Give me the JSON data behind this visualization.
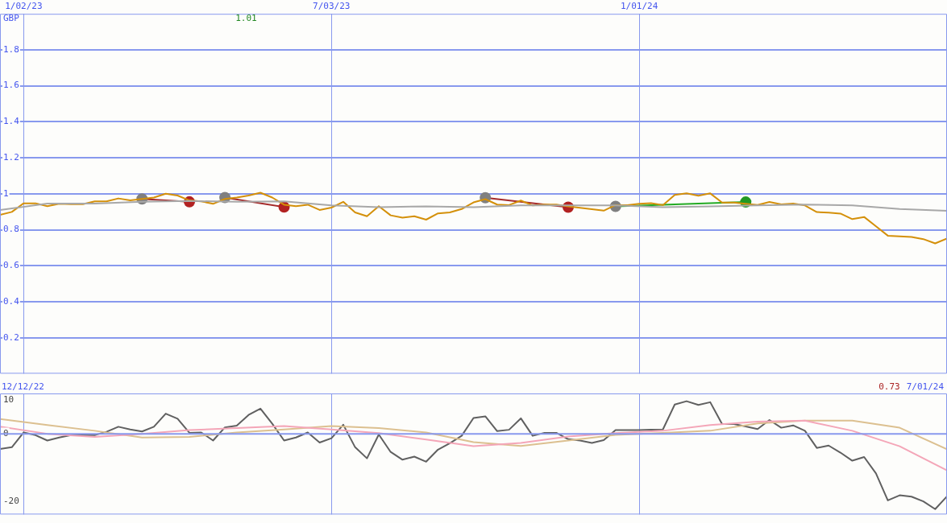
{
  "chart_data": [
    {
      "type": "line",
      "ylabel": "GBP",
      "annotations": [
        "1.01"
      ],
      "x": [
        "2022-12-19",
        "2022-12-26",
        "2023-01-02",
        "2023-01-09",
        "2023-01-16",
        "2023-01-23",
        "2023-01-30",
        "2023-02-06",
        "2023-02-13",
        "2023-02-20",
        "2023-02-27",
        "2023-03-06",
        "2023-03-13",
        "2023-03-20",
        "2023-03-27",
        "2023-04-03",
        "2023-04-10",
        "2023-04-17",
        "2023-04-24",
        "2023-05-01",
        "2023-05-08",
        "2023-05-15",
        "2023-05-22",
        "2023-05-29",
        "2023-06-05",
        "2023-06-12",
        "2023-06-19",
        "2023-06-26",
        "2023-07-03",
        "2023-07-10",
        "2023-07-17",
        "2023-07-24",
        "2023-07-31",
        "2023-08-07",
        "2023-08-14",
        "2023-08-21",
        "2023-08-28",
        "2023-09-04",
        "2023-09-11",
        "2023-09-18",
        "2023-09-25",
        "2023-10-02",
        "2023-10-09",
        "2023-10-16",
        "2023-10-23",
        "2023-10-30",
        "2023-11-06",
        "2023-11-13",
        "2023-11-20",
        "2023-11-27",
        "2023-12-04",
        "2023-12-11",
        "2023-12-18",
        "2023-12-25",
        "2024-01-01",
        "2024-01-08",
        "2024-01-15",
        "2024-01-22",
        "2024-01-29",
        "2024-02-05",
        "2024-02-12",
        "2024-02-19",
        "2024-02-26",
        "2024-03-04",
        "2024-03-11",
        "2024-03-18",
        "2024-03-25",
        "2024-04-01",
        "2024-04-08",
        "2024-04-15",
        "2024-04-22",
        "2024-04-29",
        "2024-05-06",
        "2024-05-13",
        "2024-05-20",
        "2024-05-27",
        "2024-06-03",
        "2024-06-10",
        "2024-06-17",
        "2024-06-24",
        "2024-07-01"
      ],
      "series": [
        {
          "color": "#a8a8a8",
          "x": [
            "2022-12-19",
            "2023-01-16",
            "2023-02-13",
            "2023-03-13",
            "2023-04-10",
            "2023-05-08",
            "2023-06-05",
            "2023-07-03",
            "2023-07-31",
            "2023-08-28",
            "2023-09-25",
            "2023-10-23",
            "2023-11-20",
            "2023-12-18",
            "2024-01-15",
            "2024-02-12",
            "2024-03-11",
            "2024-04-08",
            "2024-05-06",
            "2024-06-03",
            "2024-07-01"
          ],
          "values": [
            0.91,
            0.945,
            0.945,
            0.955,
            0.96,
            0.955,
            0.958,
            0.935,
            0.925,
            0.93,
            0.925,
            0.935,
            0.935,
            0.935,
            0.925,
            0.93,
            0.935,
            0.94,
            0.935,
            0.915,
            0.905
          ]
        },
        {
          "color": "#d4900a",
          "values": [
            0.883,
            0.899,
            0.947,
            0.947,
            0.931,
            0.944,
            0.942,
            0.942,
            0.958,
            0.958,
            0.974,
            0.963,
            0.971,
            0.979,
            1.0,
            0.99,
            0.963,
            0.958,
            0.944,
            0.971,
            0.979,
            0.99,
            1.006,
            0.979,
            0.939,
            0.931,
            0.939,
            0.91,
            0.923,
            0.955,
            0.896,
            0.875,
            0.931,
            0.88,
            0.867,
            0.875,
            0.856,
            0.891,
            0.896,
            0.915,
            0.952,
            0.97,
            0.94,
            0.937,
            0.962,
            0.935,
            0.94,
            0.94,
            0.93,
            0.922,
            0.914,
            0.906,
            0.937,
            0.937,
            0.944,
            0.948,
            0.937,
            0.994,
            1.002,
            0.989,
            1.002,
            0.951,
            0.951,
            0.944,
            0.938,
            0.954,
            0.941,
            0.946,
            0.935,
            0.898,
            0.895,
            0.89,
            0.859,
            0.871,
            0.819,
            0.767,
            0.763,
            0.76,
            0.748,
            0.724,
            0.751
          ]
        },
        {
          "color": "#a52a2a",
          "marker": "circle",
          "colors": [
            "#808080",
            "#b22222"
          ],
          "x": [
            "2023-03-13",
            "2023-04-10"
          ],
          "values": [
            0.971,
            0.955
          ]
        },
        {
          "color": "#a52a2a",
          "marker": "circle",
          "colors": [
            "#808080",
            "#b22222"
          ],
          "x": [
            "2023-05-01",
            "2023-06-05"
          ],
          "values": [
            0.979,
            0.926
          ]
        },
        {
          "color": "#a52a2a",
          "marker": "circle",
          "colors": [
            "#808080",
            "#b22222"
          ],
          "x": [
            "2023-10-02",
            "2023-11-20"
          ],
          "values": [
            0.978,
            0.925
          ]
        },
        {
          "color": "#22aa22",
          "marker": "circle",
          "colors": [
            "#808080",
            "#229922"
          ],
          "x": [
            "2023-12-18",
            "2024-03-04"
          ],
          "values": [
            0.93,
            0.954
          ]
        }
      ],
      "xlim": [
        "2022-12-19",
        "2024-07-01"
      ],
      "xticks": [
        {
          "value": "2023-01-02",
          "label": "1/02/23"
        },
        {
          "value": "2023-07-03",
          "label": "7/03/23"
        },
        {
          "value": "2024-01-01",
          "label": "1/01/24"
        }
      ],
      "ylim": [
        0,
        2
      ],
      "yticks": [
        0.2,
        0.4,
        0.6,
        0.8,
        1,
        1.2,
        1.4,
        1.6,
        1.8
      ],
      "grid": true,
      "legend": false,
      "marker": "none"
    },
    {
      "type": "line",
      "annotations": [
        "12/12/22",
        "7/01/24",
        "0.73"
      ],
      "x": [
        "2022-12-19",
        "2022-12-26",
        "2023-01-02",
        "2023-01-09",
        "2023-01-16",
        "2023-01-23",
        "2023-01-30",
        "2023-02-06",
        "2023-02-13",
        "2023-02-20",
        "2023-02-27",
        "2023-03-06",
        "2023-03-13",
        "2023-03-20",
        "2023-03-27",
        "2023-04-03",
        "2023-04-10",
        "2023-04-17",
        "2023-04-24",
        "2023-05-01",
        "2023-05-08",
        "2023-05-15",
        "2023-05-22",
        "2023-05-29",
        "2023-06-05",
        "2023-06-12",
        "2023-06-19",
        "2023-06-26",
        "2023-07-03",
        "2023-07-10",
        "2023-07-17",
        "2023-07-24",
        "2023-07-31",
        "2023-08-07",
        "2023-08-14",
        "2023-08-21",
        "2023-08-28",
        "2023-09-04",
        "2023-09-11",
        "2023-09-18",
        "2023-09-25",
        "2023-10-02",
        "2023-10-09",
        "2023-10-16",
        "2023-10-23",
        "2023-10-30",
        "2023-11-06",
        "2023-11-13",
        "2023-11-20",
        "2023-11-27",
        "2023-12-04",
        "2023-12-11",
        "2023-12-18",
        "2023-12-25",
        "2024-01-01",
        "2024-01-08",
        "2024-01-15",
        "2024-01-22",
        "2024-01-29",
        "2024-02-05",
        "2024-02-12",
        "2024-02-19",
        "2024-02-26",
        "2024-03-04",
        "2024-03-11",
        "2024-03-18",
        "2024-03-25",
        "2024-04-01",
        "2024-04-08",
        "2024-04-15",
        "2024-04-22",
        "2024-04-29",
        "2024-05-06",
        "2024-05-13",
        "2024-05-20",
        "2024-05-27",
        "2024-06-03",
        "2024-06-10",
        "2024-06-17",
        "2024-06-24",
        "2024-07-01"
      ],
      "series": [
        {
          "color": "#f4a6b8",
          "x": [
            "2022-12-19",
            "2023-01-16",
            "2023-02-13",
            "2023-03-13",
            "2023-04-10",
            "2023-05-08",
            "2023-06-05",
            "2023-07-03",
            "2023-07-31",
            "2023-08-28",
            "2023-09-25",
            "2023-10-23",
            "2023-11-20",
            "2023-12-18",
            "2024-01-15",
            "2024-02-12",
            "2024-03-11",
            "2024-04-08",
            "2024-05-06",
            "2024-06-03",
            "2024-07-01"
          ],
          "values": [
            2.1,
            0,
            -0.9,
            0,
            1.1,
            1.7,
            2.3,
            1.3,
            0.2,
            -1.7,
            -3.7,
            -2.7,
            -0.8,
            0.2,
            0.9,
            2.6,
            3.6,
            3.9,
            0.9,
            -3.7,
            -10.9
          ]
        },
        {
          "color": "#dcc090",
          "x": [
            "2022-12-19",
            "2023-01-16",
            "2023-02-13",
            "2023-03-13",
            "2023-04-10",
            "2023-05-08",
            "2023-06-05",
            "2023-07-03",
            "2023-07-31",
            "2023-08-28",
            "2023-09-25",
            "2023-10-23",
            "2023-11-20",
            "2023-12-18",
            "2024-01-15",
            "2024-02-12",
            "2024-03-11",
            "2024-04-08",
            "2024-05-06",
            "2024-06-03",
            "2024-07-01"
          ],
          "values": [
            4.4,
            2.6,
            0.9,
            -1.1,
            -0.9,
            0.4,
            1.3,
            2.3,
            1.7,
            0.4,
            -2.5,
            -3.6,
            -2.0,
            -0.3,
            0.3,
            0.9,
            3.1,
            3.9,
            3.9,
            1.8,
            -4.6
          ]
        },
        {
          "color": "#606060",
          "values": [
            -4.5,
            -4.0,
            0.4,
            -0.4,
            -2.0,
            -1.1,
            -0.4,
            -0.4,
            -0.4,
            0.6,
            2.1,
            1.3,
            0.7,
            2.1,
            6.0,
            4.5,
            0.3,
            0.4,
            -2.0,
            1.9,
            2.4,
            5.6,
            7.5,
            3.0,
            -2.0,
            -1.1,
            0.4,
            -2.6,
            -1.3,
            2.7,
            -4.0,
            -7.3,
            -0.2,
            -5.4,
            -7.7,
            -6.8,
            -8.3,
            -4.7,
            -2.8,
            -0.6,
            4.7,
            5.2,
            0.8,
            1.2,
            4.6,
            -0.6,
            0.3,
            0.3,
            -1.6,
            -2.0,
            -2.7,
            -1.9,
            1.1,
            1.1,
            1.1,
            1.2,
            1.3,
            8.7,
            9.7,
            8.6,
            9.4,
            2.9,
            2.9,
            2.2,
            1.4,
            4.1,
            1.8,
            2.5,
            0.9,
            -4.2,
            -3.5,
            -5.6,
            -8.0,
            -6.9,
            -11.8,
            -19.8,
            -18.3,
            -18.7,
            -20.1,
            -22.4,
            -18.6
          ]
        }
      ],
      "xlim": [
        "2022-12-19",
        "2024-07-01"
      ],
      "xticks": [
        {
          "value": "2023-01-02",
          "label": null
        },
        {
          "value": "2023-07-03",
          "label": null
        },
        {
          "value": "2024-01-01",
          "label": null
        }
      ],
      "ylim": [
        -24,
        12
      ],
      "yticks": [
        10,
        0,
        -20
      ],
      "grid": "x",
      "tick_labels": "y",
      "legend": false,
      "marker": "none",
      "ref_lines": [
        {
          "axis": "y",
          "value": 0,
          "color": "#8899ee"
        }
      ]
    }
  ]
}
